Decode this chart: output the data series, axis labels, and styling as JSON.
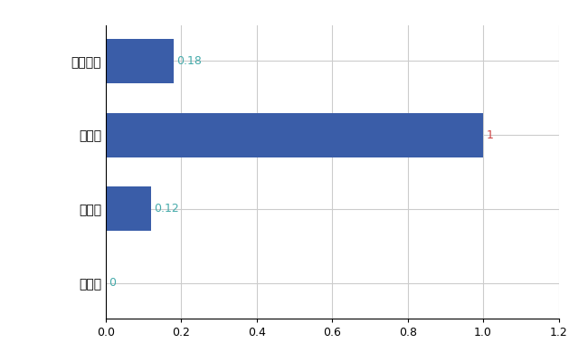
{
  "categories": [
    "大仙市",
    "県平均",
    "県最大",
    "全国平均"
  ],
  "values": [
    0,
    0.12,
    1.0,
    0.18
  ],
  "bar_color": "#3a5da8",
  "value_labels": [
    "0",
    "0.12",
    "1",
    "0.18"
  ],
  "label_colors": [
    "#44aaaa",
    "#44aaaa",
    "#cc4444",
    "#44aaaa"
  ],
  "xlim": [
    0,
    1.2
  ],
  "xticks": [
    0,
    0.2,
    0.4,
    0.6,
    0.8,
    1.0,
    1.2
  ],
  "grid_color": "#cccccc",
  "background_color": "#ffffff",
  "bar_height": 0.6
}
